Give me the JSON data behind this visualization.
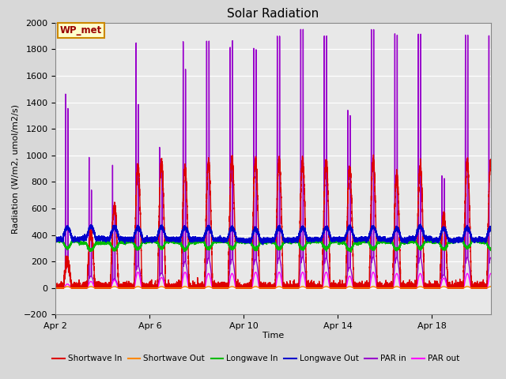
{
  "title": "Solar Radiation",
  "ylabel": "Radiation (W/m2, umol/m2/s)",
  "xlabel": "Time",
  "xlim_days": [
    0,
    18.5
  ],
  "ylim": [
    -200,
    2000
  ],
  "yticks": [
    -200,
    0,
    200,
    400,
    600,
    800,
    1000,
    1200,
    1400,
    1600,
    1800,
    2000
  ],
  "xtick_labels": [
    "Apr 2",
    "Apr 6",
    "Apr 10",
    "Apr 14",
    "Apr 18"
  ],
  "xtick_positions": [
    0,
    4,
    8,
    12,
    16
  ],
  "fig_bg_color": "#d8d8d8",
  "plot_bg_color": "#e8e8e8",
  "annotation_label": "WP_met",
  "annotation_bg": "#ffffcc",
  "annotation_border": "#cc8800",
  "annotation_text_color": "#990000",
  "series": {
    "shortwave_in": {
      "color": "#dd0000",
      "label": "Shortwave In",
      "lw": 1.0
    },
    "shortwave_out": {
      "color": "#ff8800",
      "label": "Shortwave Out",
      "lw": 1.0
    },
    "longwave_in": {
      "color": "#00bb00",
      "label": "Longwave In",
      "lw": 1.0
    },
    "longwave_out": {
      "color": "#0000cc",
      "label": "Longwave Out",
      "lw": 1.2
    },
    "par_in": {
      "color": "#9900cc",
      "label": "PAR in",
      "lw": 1.0
    },
    "par_out": {
      "color": "#ff00ff",
      "label": "PAR out",
      "lw": 1.0
    }
  },
  "n_days": 19,
  "pts_per_day": 480,
  "title_fontsize": 11,
  "label_fontsize": 8,
  "tick_fontsize": 8
}
